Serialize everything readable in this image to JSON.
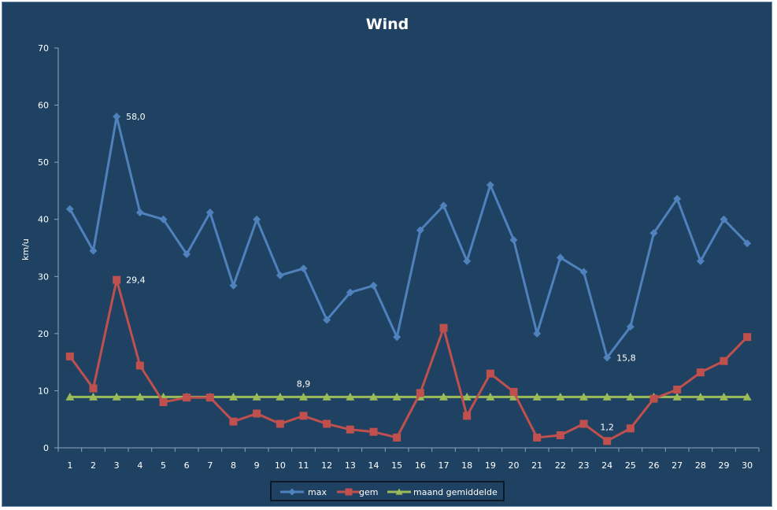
{
  "chart_data": {
    "type": "line",
    "title": "Wind",
    "xlabel": "",
    "ylabel": "km/u",
    "ylim": [
      0,
      70
    ],
    "yticks": [
      0,
      10,
      20,
      30,
      40,
      50,
      60,
      70
    ],
    "categories": [
      "1",
      "2",
      "3",
      "4",
      "5",
      "6",
      "7",
      "8",
      "9",
      "10",
      "11",
      "12",
      "13",
      "14",
      "15",
      "16",
      "17",
      "18",
      "19",
      "20",
      "21",
      "22",
      "23",
      "24",
      "25",
      "26",
      "27",
      "28",
      "29",
      "30"
    ],
    "grid": false,
    "legend_position": "bottom",
    "series": [
      {
        "name": "max",
        "color": "#4f81bd",
        "marker": "diamond",
        "values": [
          41.8,
          34.5,
          58.0,
          41.2,
          40.0,
          33.9,
          41.2,
          28.4,
          40.0,
          30.2,
          31.4,
          22.4,
          27.2,
          28.4,
          19.4,
          38.1,
          42.4,
          32.7,
          46.0,
          36.4,
          20.0,
          33.3,
          30.8,
          15.8,
          21.2,
          37.6,
          43.6,
          32.7,
          40.0,
          35.8
        ]
      },
      {
        "name": "gem",
        "color": "#c0504d",
        "marker": "square",
        "values": [
          16.0,
          10.4,
          29.4,
          14.4,
          8.0,
          8.8,
          8.8,
          4.6,
          6.0,
          4.2,
          5.6,
          4.2,
          3.2,
          2.8,
          1.8,
          9.6,
          21.0,
          5.6,
          13.0,
          9.8,
          1.8,
          2.2,
          4.2,
          1.2,
          3.4,
          8.6,
          10.2,
          13.2,
          15.2,
          19.4
        ]
      },
      {
        "name": "maand gemiddelde",
        "color": "#9bbb59",
        "marker": "triangle",
        "values": [
          8.9,
          8.9,
          8.9,
          8.9,
          8.9,
          8.9,
          8.9,
          8.9,
          8.9,
          8.9,
          8.9,
          8.9,
          8.9,
          8.9,
          8.9,
          8.9,
          8.9,
          8.9,
          8.9,
          8.9,
          8.9,
          8.9,
          8.9,
          8.9,
          8.9,
          8.9,
          8.9,
          8.9,
          8.9,
          8.9
        ]
      }
    ],
    "annotations": [
      {
        "series": "max",
        "index": 2,
        "text": "58,0"
      },
      {
        "series": "gem",
        "index": 2,
        "text": "29,4"
      },
      {
        "series": "maand gemiddelde",
        "index": 10,
        "text": "8,9"
      },
      {
        "series": "max",
        "index": 23,
        "text": "15,8"
      },
      {
        "series": "gem",
        "index": 23,
        "text": "1,2"
      }
    ]
  }
}
